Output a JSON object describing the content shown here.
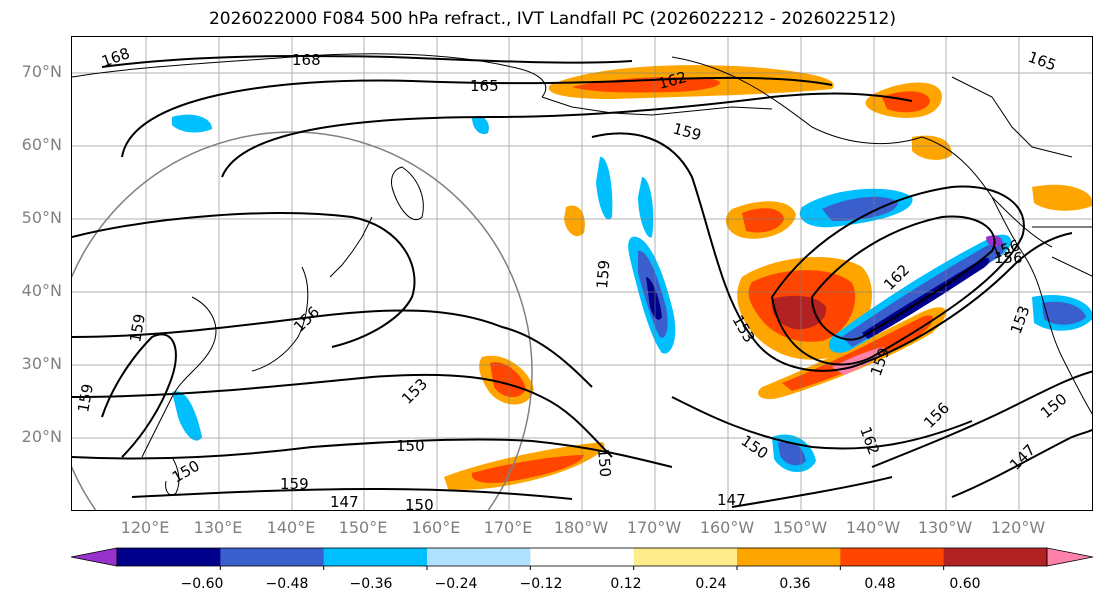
{
  "title": "2026022000 F084 500 hPa refract., IVT Landfall PC (2026022212 - 2026022512)",
  "map": {
    "lat_labels": [
      "70°N",
      "60°N",
      "50°N",
      "40°N",
      "30°N",
      "20°N"
    ],
    "lon_labels": [
      "120°E",
      "130°E",
      "140°E",
      "150°E",
      "160°E",
      "170°E",
      "180°W",
      "170°W",
      "160°W",
      "150°W",
      "140°W",
      "130°W",
      "120°W"
    ],
    "contour_labels": [
      "168",
      "168",
      "165",
      "162",
      "159",
      "165",
      "159",
      "156",
      "153",
      "150",
      "150",
      "159",
      "156",
      "153",
      "162",
      "159",
      "156",
      "150",
      "147",
      "150",
      "159",
      "147",
      "150",
      "162",
      "156",
      "153",
      "147",
      "150",
      "159"
    ],
    "grid": true,
    "range_circle": true
  },
  "colorbar": {
    "ticks": [
      "−0.60",
      "−0.48",
      "−0.36",
      "−0.24",
      "−0.12",
      "0.12",
      "0.24",
      "0.36",
      "0.48",
      "0.60"
    ],
    "colors": [
      "#9932cc",
      "#00008b",
      "#3a5fcd",
      "#00bfff",
      "#b0e2ff",
      "#ffffff",
      "#ffec8b",
      "#ffa500",
      "#ff4500",
      "#b22222",
      "#ff82ab"
    ],
    "extend": "both"
  }
}
